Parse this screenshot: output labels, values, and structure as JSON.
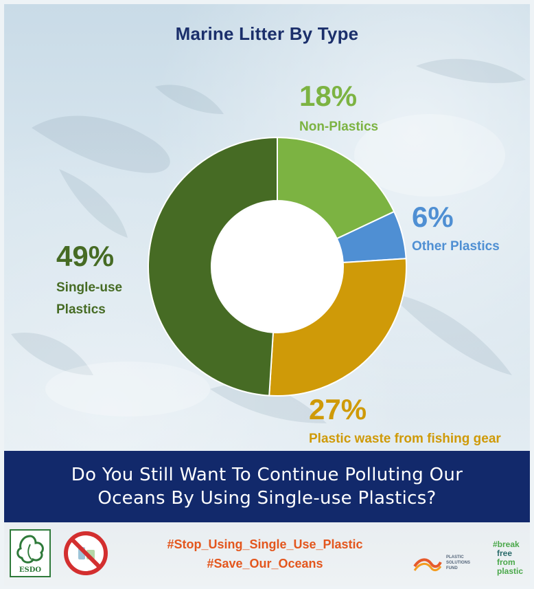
{
  "chart_data": {
    "type": "pie",
    "title": "Marine Litter By Type",
    "slices": [
      {
        "label": "Non-Plastics",
        "value": 18,
        "display": "18%",
        "color": "#7cb342"
      },
      {
        "label": "Other Plastics",
        "value": 6,
        "display": "6%",
        "color": "#4f8fd3"
      },
      {
        "label": "Plastic waste from fishing gear",
        "value": 27,
        "display": "27%",
        "color": "#cf9a08"
      },
      {
        "label_lines": [
          "Single-use",
          "Plastics"
        ],
        "label": "Single-use Plastics",
        "value": 49,
        "display": "49%",
        "color": "#466b24"
      }
    ],
    "legend": "none"
  },
  "banner": {
    "line1": "Do You Still Want To Continue Polluting Our",
    "line2": "Oceans By Using Single-use Plastics?"
  },
  "footer": {
    "hashtag1": "#Stop_Using_Single_Use_Plastic",
    "hashtag2": "#Save_Our_Oceans",
    "esdo_logo_text": "ESDO",
    "psf_logo_lines": [
      "PLASTIC",
      "SOLUTIONS",
      "FUND"
    ],
    "bff_logo_lines": [
      "#break",
      "free",
      "from",
      "plastic"
    ]
  },
  "colors": {
    "title": "#1b2f6b",
    "banner_bg": "#12296b",
    "hashtag": "#e3561d"
  },
  "icons": [
    "esdo-logo-icon",
    "no-plastic-icon",
    "plastic-solutions-fund-logo-icon",
    "break-free-from-plastic-logo-icon"
  ]
}
